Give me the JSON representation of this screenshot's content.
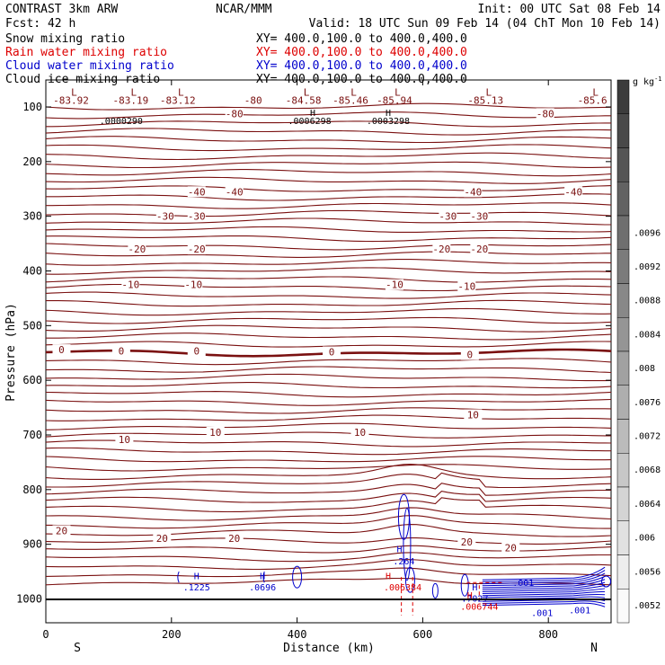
{
  "header": {
    "title_left": "CONTRAST  3km ARW",
    "title_mid": "NCAR/MMM",
    "init": "Init: 00 UTC Sat 08 Feb 14",
    "fcst": "Fcst:   42 h",
    "valid": "Valid: 18 UTC Sun 09 Feb 14 (04 ChT Mon 10 Feb 14)"
  },
  "legend": [
    {
      "name": "Snow mixing ratio",
      "xy": "XY= 400.0,100.0 to 400.0,400.0",
      "color": "#000000"
    },
    {
      "name": "Rain water mixing ratio",
      "xy": "XY= 400.0,100.0 to 400.0,400.0",
      "color": "#dd0000"
    },
    {
      "name": "Cloud water mixing ratio",
      "xy": "XY= 400.0,100.0 to 400.0,400.0",
      "color": "#0000cc"
    },
    {
      "name": "Cloud ice mixing ratio",
      "xy": "XY= 400.0,100.0 to 400.0,400.0",
      "color": "#000000"
    }
  ],
  "colors": {
    "temp": "#7a1010",
    "rain": "#dd0000",
    "cloud": "#0000cc",
    "ice": "#000000"
  },
  "chart_data": {
    "type": "contour",
    "xlabel": "Distance (km)",
    "ylabel": "Pressure (hPa)",
    "x_range": [
      0,
      900
    ],
    "y_range": [
      1050,
      60
    ],
    "x_ticks": [
      0,
      200,
      400,
      600,
      800
    ],
    "y_ticks": [
      100,
      200,
      300,
      400,
      500,
      600,
      700,
      800,
      900,
      1000
    ],
    "x_end_labels": {
      "left": "S",
      "right": "N"
    },
    "temperature_contours": [
      {
        "level": -80,
        "p": 95
      },
      {
        "level": -40,
        "p": 255
      },
      {
        "level": -30,
        "p": 300
      },
      {
        "level": -20,
        "p": 360
      },
      {
        "level": -10,
        "p": 425
      },
      {
        "level": 0,
        "p": 545
      },
      {
        "level": 10,
        "p": 683
      },
      {
        "level": 20,
        "p": 875
      }
    ],
    "temperature_labels": [
      {
        "text": "-80",
        "x": 330,
        "p": 88
      },
      {
        "text": "-80",
        "x": 300,
        "p": 112
      },
      {
        "text": "-80",
        "x": 795,
        "p": 112
      },
      {
        "text": "-40",
        "x": 240,
        "p": 255
      },
      {
        "text": "-40",
        "x": 300,
        "p": 255
      },
      {
        "text": "-40",
        "x": 680,
        "p": 255
      },
      {
        "text": "-40",
        "x": 840,
        "p": 255
      },
      {
        "text": "-30",
        "x": 190,
        "p": 300
      },
      {
        "text": "-30",
        "x": 240,
        "p": 300
      },
      {
        "text": "-30",
        "x": 640,
        "p": 300
      },
      {
        "text": "-30",
        "x": 690,
        "p": 300
      },
      {
        "text": "-20",
        "x": 145,
        "p": 360
      },
      {
        "text": "-20",
        "x": 240,
        "p": 360
      },
      {
        "text": "-20",
        "x": 630,
        "p": 360
      },
      {
        "text": "-20",
        "x": 690,
        "p": 360
      },
      {
        "text": "-10",
        "x": 135,
        "p": 425
      },
      {
        "text": "-10",
        "x": 235,
        "p": 425
      },
      {
        "text": "-10",
        "x": 555,
        "p": 425
      },
      {
        "text": "-10",
        "x": 670,
        "p": 428
      },
      {
        "text": "0",
        "x": 25,
        "p": 544
      },
      {
        "text": "0",
        "x": 120,
        "p": 546
      },
      {
        "text": "0",
        "x": 240,
        "p": 546
      },
      {
        "text": "0",
        "x": 455,
        "p": 548
      },
      {
        "text": "0",
        "x": 675,
        "p": 553
      },
      {
        "text": "10",
        "x": 125,
        "p": 708
      },
      {
        "text": "10",
        "x": 270,
        "p": 695
      },
      {
        "text": "10",
        "x": 500,
        "p": 695
      },
      {
        "text": "10",
        "x": 680,
        "p": 663
      },
      {
        "text": "20",
        "x": 25,
        "p": 875
      },
      {
        "text": "20",
        "x": 185,
        "p": 889
      },
      {
        "text": "20",
        "x": 300,
        "p": 889
      },
      {
        "text": "20",
        "x": 670,
        "p": 896
      },
      {
        "text": "20",
        "x": 740,
        "p": 906
      }
    ],
    "minima": [
      {
        "label": "L",
        "value": "-83.92",
        "x": 40,
        "p": 88
      },
      {
        "label": "L",
        "value": "-83.19",
        "x": 135,
        "p": 88
      },
      {
        "label": "L",
        "value": "-83.12",
        "x": 210,
        "p": 88
      },
      {
        "label": "L",
        "value": "-84.58",
        "x": 410,
        "p": 88
      },
      {
        "label": "L",
        "value": "-85.46",
        "x": 485,
        "p": 88
      },
      {
        "label": "L",
        "value": "-85.94",
        "x": 555,
        "p": 88
      },
      {
        "label": "L",
        "value": "-85.13",
        "x": 700,
        "p": 88
      },
      {
        "label": "L",
        "value": "-85.6",
        "x": 870,
        "p": 88
      }
    ],
    "ice_labels": [
      {
        "text": ".0000290",
        "x": 120,
        "p": 125
      },
      {
        "text": ".0006298",
        "x": 420,
        "p": 125
      },
      {
        "text": ".0003298",
        "x": 545,
        "p": 125
      },
      {
        "text": "H",
        "x": 425,
        "p": 110
      },
      {
        "text": "H",
        "x": 545,
        "p": 110
      }
    ],
    "cloud_water_labels": [
      {
        "text": "H",
        "x": 240,
        "p": 957
      },
      {
        "text": ".1225",
        "x": 240,
        "p": 978
      },
      {
        "text": "H",
        "x": 345,
        "p": 957
      },
      {
        "text": ".0696",
        "x": 345,
        "p": 978
      },
      {
        "text": "H",
        "x": 563,
        "p": 908
      },
      {
        "text": ".264",
        "x": 570,
        "p": 930
      },
      {
        "text": "H",
        "x": 683,
        "p": 978
      },
      {
        "text": ".7027",
        "x": 683,
        "p": 998
      },
      {
        "text": ".001",
        "x": 760,
        "p": 970
      },
      {
        "text": ".001",
        "x": 790,
        "p": 1025
      },
      {
        "text": ".001",
        "x": 850,
        "p": 1020
      }
    ],
    "rain_labels": [
      {
        "text": "H",
        "x": 545,
        "p": 957
      },
      {
        "text": ".006384",
        "x": 568,
        "p": 978
      },
      {
        "text": "H",
        "x": 675,
        "p": 993
      },
      {
        "text": ".006744",
        "x": 690,
        "p": 1013
      }
    ],
    "colorbar": {
      "unit": "g kg",
      "unit_exp": "-1",
      "ticks": [
        ".0052",
        ".0056",
        ".006",
        ".0064",
        ".0068",
        ".0072",
        ".0076",
        ".008",
        ".0084",
        ".0088",
        ".0092",
        ".0096"
      ]
    }
  }
}
